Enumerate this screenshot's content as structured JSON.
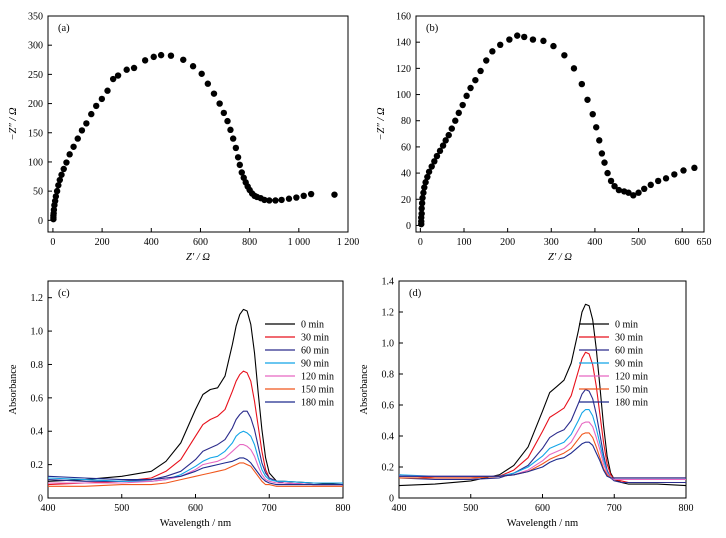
{
  "chart_data": [
    {
      "panel": "(a)",
      "type": "scatter",
      "xlabel": "Z′ / Ω",
      "ylabel": "−Z″ / Ω",
      "xlim": [
        -20,
        1200
      ],
      "ylim": [
        -20,
        350
      ],
      "xticks": [
        0,
        200,
        400,
        600,
        800,
        1000,
        1200
      ],
      "xtick_labels": [
        "0",
        "200",
        "400",
        "600",
        "800",
        "1 000",
        "1 200"
      ],
      "yticks": [
        0,
        50,
        100,
        150,
        200,
        250,
        300,
        350
      ],
      "ytick_labels": [
        "0",
        "50",
        "100",
        "150",
        "200",
        "250",
        "300",
        "350"
      ],
      "points": [
        [
          2,
          2
        ],
        [
          2,
          5
        ],
        [
          2,
          8
        ],
        [
          3,
          12
        ],
        [
          4,
          18
        ],
        [
          6,
          26
        ],
        [
          9,
          33
        ],
        [
          12,
          41
        ],
        [
          17,
          50
        ],
        [
          22,
          60
        ],
        [
          28,
          69
        ],
        [
          35,
          78
        ],
        [
          44,
          88
        ],
        [
          55,
          99
        ],
        [
          68,
          113
        ],
        [
          84,
          126
        ],
        [
          101,
          140
        ],
        [
          118,
          154
        ],
        [
          136,
          166
        ],
        [
          156,
          182
        ],
        [
          176,
          196
        ],
        [
          199,
          208
        ],
        [
          222,
          222
        ],
        [
          245,
          242
        ],
        [
          265,
          248
        ],
        [
          300,
          258
        ],
        [
          330,
          261
        ],
        [
          375,
          274
        ],
        [
          410,
          280
        ],
        [
          440,
          283
        ],
        [
          480,
          282
        ],
        [
          530,
          275
        ],
        [
          570,
          264
        ],
        [
          605,
          251
        ],
        [
          630,
          234
        ],
        [
          655,
          217
        ],
        [
          678,
          200
        ],
        [
          695,
          184
        ],
        [
          710,
          170
        ],
        [
          722,
          155
        ],
        [
          733,
          140
        ],
        [
          744,
          124
        ],
        [
          753,
          108
        ],
        [
          760,
          95
        ],
        [
          768,
          82
        ],
        [
          776,
          73
        ],
        [
          784,
          65
        ],
        [
          792,
          58
        ],
        [
          800,
          52
        ],
        [
          810,
          46
        ],
        [
          820,
          42
        ],
        [
          830,
          40
        ],
        [
          845,
          38
        ],
        [
          860,
          35
        ],
        [
          880,
          34
        ],
        [
          905,
          34
        ],
        [
          930,
          35
        ],
        [
          960,
          37
        ],
        [
          990,
          39
        ],
        [
          1020,
          42
        ],
        [
          1050,
          45
        ],
        [
          1145,
          44
        ]
      ]
    },
    {
      "panel": "(b)",
      "type": "scatter",
      "xlabel": "Z′ / Ω",
      "ylabel": "−Z″ / Ω",
      "xlim": [
        -10,
        650
      ],
      "ylim": [
        -5,
        160
      ],
      "xticks": [
        0,
        100,
        200,
        300,
        400,
        500,
        600,
        650
      ],
      "xtick_labels": [
        "0",
        "100",
        "200",
        "300",
        "400",
        "500",
        "600",
        "650"
      ],
      "yticks": [
        0,
        20,
        40,
        60,
        80,
        100,
        120,
        140,
        160
      ],
      "ytick_labels": [
        "0",
        "20",
        "40",
        "60",
        "80",
        "100",
        "120",
        "140",
        "160"
      ],
      "points": [
        [
          2,
          1
        ],
        [
          2,
          3
        ],
        [
          2,
          6
        ],
        [
          3,
          9
        ],
        [
          3,
          13
        ],
        [
          4,
          17
        ],
        [
          5,
          21
        ],
        [
          7,
          25
        ],
        [
          9,
          29
        ],
        [
          12,
          33
        ],
        [
          16,
          37
        ],
        [
          20,
          41
        ],
        [
          26,
          45
        ],
        [
          32,
          49
        ],
        [
          38,
          53
        ],
        [
          45,
          57
        ],
        [
          52,
          61
        ],
        [
          58,
          65
        ],
        [
          65,
          69
        ],
        [
          72,
          74
        ],
        [
          80,
          80
        ],
        [
          88,
          86
        ],
        [
          97,
          92
        ],
        [
          106,
          99
        ],
        [
          115,
          105
        ],
        [
          126,
          111
        ],
        [
          138,
          118
        ],
        [
          151,
          126
        ],
        [
          165,
          133
        ],
        [
          183,
          138
        ],
        [
          204,
          142
        ],
        [
          222,
          145
        ],
        [
          238,
          144
        ],
        [
          258,
          142
        ],
        [
          282,
          141
        ],
        [
          305,
          137
        ],
        [
          330,
          130
        ],
        [
          352,
          120
        ],
        [
          370,
          108
        ],
        [
          383,
          96
        ],
        [
          395,
          85
        ],
        [
          403,
          75
        ],
        [
          410,
          65
        ],
        [
          416,
          55
        ],
        [
          422,
          48
        ],
        [
          429,
          40
        ],
        [
          437,
          34
        ],
        [
          445,
          30
        ],
        [
          455,
          27
        ],
        [
          467,
          26
        ],
        [
          477,
          25
        ],
        [
          488,
          23
        ],
        [
          500,
          25
        ],
        [
          513,
          28
        ],
        [
          528,
          31
        ],
        [
          545,
          34
        ],
        [
          563,
          36
        ],
        [
          582,
          39
        ],
        [
          603,
          42
        ],
        [
          628,
          44
        ]
      ]
    },
    {
      "panel": "(c)",
      "type": "line",
      "xlabel": "Wavelength / nm",
      "ylabel": "Absorbance",
      "xlim": [
        400,
        800
      ],
      "ylim": [
        0,
        1.3
      ],
      "xticks": [
        400,
        500,
        600,
        700,
        800
      ],
      "xtick_labels": [
        "400",
        "500",
        "600",
        "700",
        "800"
      ],
      "yticks": [
        0,
        0.2,
        0.4,
        0.6,
        0.8,
        1.0,
        1.2
      ],
      "ytick_labels": [
        "0",
        "0.2",
        "0.4",
        "0.6",
        "0.8",
        "1.0",
        "1.2"
      ],
      "legend_position": "top-right",
      "x": [
        400,
        450,
        500,
        540,
        560,
        580,
        600,
        610,
        620,
        630,
        640,
        650,
        655,
        660,
        665,
        670,
        675,
        680,
        685,
        690,
        695,
        700,
        710,
        720,
        760,
        800
      ],
      "series": [
        {
          "name": "0 min",
          "color": "#000000",
          "values": [
            0.1,
            0.11,
            0.13,
            0.16,
            0.22,
            0.33,
            0.53,
            0.62,
            0.65,
            0.66,
            0.73,
            0.92,
            1.03,
            1.1,
            1.13,
            1.12,
            1.04,
            0.87,
            0.63,
            0.41,
            0.24,
            0.15,
            0.1,
            0.1,
            0.09,
            0.08
          ]
        },
        {
          "name": "30 min",
          "color": "#e8111c",
          "values": [
            0.08,
            0.09,
            0.1,
            0.12,
            0.16,
            0.23,
            0.37,
            0.44,
            0.47,
            0.49,
            0.53,
            0.64,
            0.7,
            0.74,
            0.76,
            0.75,
            0.7,
            0.58,
            0.43,
            0.28,
            0.17,
            0.12,
            0.1,
            0.09,
            0.08,
            0.08
          ]
        },
        {
          "name": "60 min",
          "color": "#2c2c8c",
          "values": [
            0.11,
            0.1,
            0.1,
            0.11,
            0.13,
            0.16,
            0.23,
            0.28,
            0.3,
            0.32,
            0.35,
            0.42,
            0.47,
            0.5,
            0.52,
            0.52,
            0.48,
            0.41,
            0.31,
            0.21,
            0.15,
            0.12,
            0.1,
            0.09,
            0.08,
            0.08
          ]
        },
        {
          "name": "90 min",
          "color": "#12a5e8",
          "values": [
            0.12,
            0.11,
            0.1,
            0.1,
            0.11,
            0.14,
            0.19,
            0.22,
            0.24,
            0.25,
            0.28,
            0.33,
            0.37,
            0.39,
            0.4,
            0.39,
            0.37,
            0.32,
            0.24,
            0.17,
            0.13,
            0.11,
            0.1,
            0.1,
            0.09,
            0.09
          ]
        },
        {
          "name": "120 min",
          "color": "#e668c2",
          "values": [
            0.09,
            0.09,
            0.09,
            0.1,
            0.11,
            0.13,
            0.17,
            0.2,
            0.21,
            0.22,
            0.24,
            0.28,
            0.3,
            0.32,
            0.32,
            0.31,
            0.29,
            0.25,
            0.19,
            0.14,
            0.11,
            0.1,
            0.09,
            0.09,
            0.08,
            0.08
          ]
        },
        {
          "name": "150 min",
          "color": "#f0561c",
          "values": [
            0.07,
            0.07,
            0.08,
            0.08,
            0.09,
            0.11,
            0.13,
            0.14,
            0.15,
            0.16,
            0.17,
            0.19,
            0.2,
            0.21,
            0.21,
            0.2,
            0.19,
            0.16,
            0.13,
            0.1,
            0.08,
            0.08,
            0.07,
            0.07,
            0.07,
            0.07
          ]
        },
        {
          "name": "180 min",
          "color": "#1f2b8e",
          "values": [
            0.13,
            0.12,
            0.11,
            0.11,
            0.12,
            0.13,
            0.16,
            0.18,
            0.19,
            0.2,
            0.21,
            0.22,
            0.23,
            0.24,
            0.24,
            0.23,
            0.21,
            0.18,
            0.15,
            0.12,
            0.1,
            0.09,
            0.08,
            0.08,
            0.08,
            0.08
          ]
        }
      ]
    },
    {
      "panel": "(d)",
      "type": "line",
      "xlabel": "Wavelength / nm",
      "ylabel": "Absorbance",
      "xlim": [
        400,
        800
      ],
      "ylim": [
        0,
        1.4
      ],
      "xticks": [
        400,
        500,
        600,
        700,
        800
      ],
      "xtick_labels": [
        "400",
        "500",
        "600",
        "700",
        "800"
      ],
      "yticks": [
        0,
        0.2,
        0.4,
        0.6,
        0.8,
        1.0,
        1.2,
        1.4
      ],
      "ytick_labels": [
        "0",
        "0.2",
        "0.4",
        "0.6",
        "0.8",
        "1.0",
        "1.2",
        "1.4"
      ],
      "legend_position": "top-right",
      "x": [
        400,
        450,
        500,
        540,
        560,
        580,
        600,
        610,
        620,
        630,
        640,
        650,
        655,
        660,
        665,
        670,
        675,
        680,
        685,
        690,
        695,
        700,
        710,
        720,
        760,
        800
      ],
      "series": [
        {
          "name": "0 min",
          "color": "#000000",
          "values": [
            0.08,
            0.09,
            0.11,
            0.15,
            0.21,
            0.33,
            0.56,
            0.68,
            0.72,
            0.76,
            0.87,
            1.08,
            1.2,
            1.25,
            1.24,
            1.15,
            0.96,
            0.72,
            0.47,
            0.27,
            0.16,
            0.12,
            0.1,
            0.09,
            0.09,
            0.08
          ]
        },
        {
          "name": "30 min",
          "color": "#e8111c",
          "values": [
            0.15,
            0.13,
            0.13,
            0.14,
            0.18,
            0.26,
            0.43,
            0.52,
            0.55,
            0.58,
            0.66,
            0.82,
            0.9,
            0.94,
            0.93,
            0.86,
            0.72,
            0.54,
            0.36,
            0.22,
            0.15,
            0.12,
            0.11,
            0.1,
            0.1,
            0.1
          ]
        },
        {
          "name": "60 min",
          "color": "#2c2c8c",
          "values": [
            0.13,
            0.12,
            0.12,
            0.13,
            0.16,
            0.21,
            0.32,
            0.39,
            0.42,
            0.44,
            0.5,
            0.61,
            0.67,
            0.7,
            0.69,
            0.64,
            0.54,
            0.41,
            0.28,
            0.18,
            0.13,
            0.11,
            0.1,
            0.1,
            0.1,
            0.1
          ]
        },
        {
          "name": "90 min",
          "color": "#12a5e8",
          "values": [
            0.15,
            0.14,
            0.14,
            0.14,
            0.16,
            0.2,
            0.27,
            0.32,
            0.34,
            0.36,
            0.41,
            0.5,
            0.55,
            0.57,
            0.57,
            0.53,
            0.45,
            0.35,
            0.25,
            0.17,
            0.13,
            0.12,
            0.12,
            0.12,
            0.12,
            0.12
          ]
        },
        {
          "name": "120 min",
          "color": "#e668c2",
          "values": [
            0.14,
            0.14,
            0.14,
            0.14,
            0.15,
            0.18,
            0.24,
            0.28,
            0.3,
            0.32,
            0.36,
            0.44,
            0.48,
            0.49,
            0.49,
            0.46,
            0.39,
            0.31,
            0.22,
            0.16,
            0.13,
            0.12,
            0.12,
            0.12,
            0.12,
            0.12
          ]
        },
        {
          "name": "150 min",
          "color": "#f0561c",
          "values": [
            0.13,
            0.13,
            0.13,
            0.14,
            0.15,
            0.17,
            0.22,
            0.25,
            0.27,
            0.29,
            0.32,
            0.38,
            0.41,
            0.42,
            0.42,
            0.39,
            0.33,
            0.26,
            0.19,
            0.15,
            0.13,
            0.13,
            0.13,
            0.13,
            0.13,
            0.13
          ]
        },
        {
          "name": "180 min",
          "color": "#1f2b8e",
          "values": [
            0.14,
            0.14,
            0.14,
            0.14,
            0.15,
            0.17,
            0.2,
            0.23,
            0.25,
            0.26,
            0.29,
            0.33,
            0.35,
            0.36,
            0.36,
            0.34,
            0.29,
            0.24,
            0.18,
            0.14,
            0.13,
            0.13,
            0.13,
            0.13,
            0.13,
            0.13
          ]
        }
      ]
    }
  ]
}
